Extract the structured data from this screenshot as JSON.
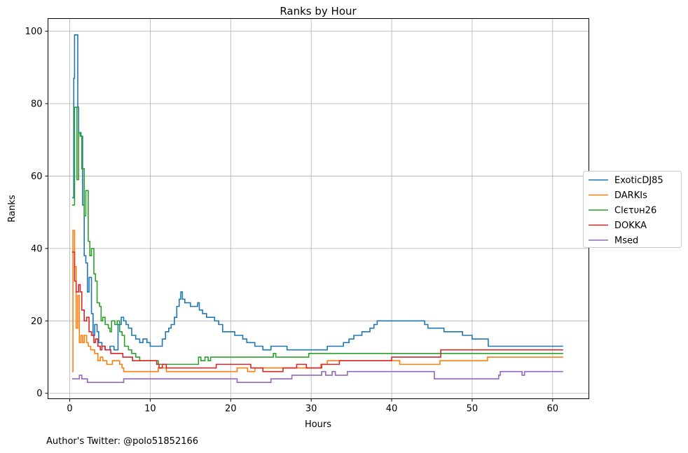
{
  "chart_data": {
    "type": "line",
    "step": true,
    "title": "Ranks by Hour",
    "xlabel": "Hours",
    "ylabel": "Ranks",
    "xlim": [
      -2.7,
      64.5
    ],
    "ylim": [
      -1.5,
      103.5
    ],
    "xticks": [
      0,
      10,
      20,
      30,
      40,
      50,
      60
    ],
    "yticks": [
      0,
      20,
      40,
      60,
      80,
      100
    ],
    "grid": true,
    "legend_position": "center-right-outside",
    "series": [
      {
        "name": "ExoticDJ85",
        "color": "#1f77b4",
        "points": [
          [
            0.3,
            54
          ],
          [
            0.5,
            87
          ],
          [
            0.6,
            99
          ],
          [
            1.0,
            79
          ],
          [
            1.1,
            72
          ],
          [
            1.4,
            71
          ],
          [
            1.6,
            52
          ],
          [
            1.8,
            38
          ],
          [
            2.0,
            36
          ],
          [
            2.2,
            28
          ],
          [
            2.4,
            32
          ],
          [
            2.7,
            22
          ],
          [
            2.9,
            16
          ],
          [
            3.1,
            19
          ],
          [
            3.4,
            17
          ],
          [
            3.6,
            14
          ],
          [
            4.0,
            13
          ],
          [
            4.4,
            12
          ],
          [
            5.0,
            13
          ],
          [
            5.5,
            12
          ],
          [
            6.0,
            19
          ],
          [
            6.4,
            21
          ],
          [
            6.7,
            20
          ],
          [
            7.0,
            19
          ],
          [
            7.3,
            18
          ],
          [
            7.7,
            16
          ],
          [
            8.2,
            15
          ],
          [
            8.7,
            14
          ],
          [
            9.1,
            15
          ],
          [
            9.6,
            14
          ],
          [
            10.0,
            13
          ],
          [
            11.0,
            13
          ],
          [
            11.5,
            15
          ],
          [
            11.9,
            17
          ],
          [
            12.3,
            18
          ],
          [
            12.6,
            19
          ],
          [
            13.0,
            21
          ],
          [
            13.3,
            24
          ],
          [
            13.6,
            26
          ],
          [
            13.8,
            28
          ],
          [
            14.0,
            26
          ],
          [
            14.3,
            25
          ],
          [
            15.0,
            24
          ],
          [
            15.9,
            25
          ],
          [
            16.1,
            23
          ],
          [
            16.5,
            22
          ],
          [
            17.0,
            21
          ],
          [
            18.0,
            20
          ],
          [
            18.5,
            19
          ],
          [
            19.0,
            17
          ],
          [
            20.5,
            16
          ],
          [
            21.5,
            15
          ],
          [
            22.0,
            14
          ],
          [
            23.0,
            13
          ],
          [
            24.0,
            12
          ],
          [
            24.5,
            12
          ],
          [
            25.0,
            13
          ],
          [
            26.5,
            13
          ],
          [
            27.0,
            12
          ],
          [
            30.0,
            12
          ],
          [
            32.0,
            13
          ],
          [
            34.0,
            14
          ],
          [
            34.7,
            15
          ],
          [
            35.3,
            16
          ],
          [
            36.3,
            17
          ],
          [
            37.3,
            18
          ],
          [
            37.8,
            19
          ],
          [
            38.2,
            20
          ],
          [
            42.0,
            20
          ],
          [
            44.1,
            19
          ],
          [
            44.5,
            18
          ],
          [
            46.5,
            17
          ],
          [
            48.8,
            16
          ],
          [
            50.0,
            15
          ],
          [
            52.0,
            13
          ],
          [
            61.3,
            13
          ]
        ]
      },
      {
        "name": "DARKIs",
        "color": "#ff7f0e",
        "points": [
          [
            0.3,
            6
          ],
          [
            0.4,
            45
          ],
          [
            0.6,
            35
          ],
          [
            0.8,
            18
          ],
          [
            1.0,
            27
          ],
          [
            1.2,
            14
          ],
          [
            1.4,
            16
          ],
          [
            1.6,
            14
          ],
          [
            1.8,
            16
          ],
          [
            2.1,
            14
          ],
          [
            2.3,
            13
          ],
          [
            2.6,
            12
          ],
          [
            3.1,
            11
          ],
          [
            3.5,
            9
          ],
          [
            3.8,
            10
          ],
          [
            4.1,
            9
          ],
          [
            4.6,
            8
          ],
          [
            5.0,
            8
          ],
          [
            5.3,
            9
          ],
          [
            6.2,
            8
          ],
          [
            6.5,
            7
          ],
          [
            6.7,
            6
          ],
          [
            10.8,
            6
          ],
          [
            11.0,
            7
          ],
          [
            12.0,
            6
          ],
          [
            20.8,
            7
          ],
          [
            22.1,
            6
          ],
          [
            23.0,
            7
          ],
          [
            29.4,
            7
          ],
          [
            31.2,
            8
          ],
          [
            32.0,
            9
          ],
          [
            40.8,
            9
          ],
          [
            41.0,
            8
          ],
          [
            46.0,
            9
          ],
          [
            51.9,
            10
          ],
          [
            61.3,
            10
          ]
        ]
      },
      {
        "name": "Clєτυн26",
        "color": "#2ca02c",
        "points": [
          [
            0.3,
            52
          ],
          [
            0.6,
            79
          ],
          [
            0.9,
            59
          ],
          [
            1.1,
            72
          ],
          [
            1.3,
            71
          ],
          [
            1.5,
            62
          ],
          [
            1.8,
            49
          ],
          [
            2.0,
            56
          ],
          [
            2.3,
            42
          ],
          [
            2.5,
            38
          ],
          [
            2.7,
            40
          ],
          [
            3.0,
            33
          ],
          [
            3.2,
            31
          ],
          [
            3.4,
            25
          ],
          [
            3.7,
            24
          ],
          [
            3.9,
            20
          ],
          [
            4.1,
            21
          ],
          [
            4.4,
            19
          ],
          [
            4.8,
            18
          ],
          [
            5.0,
            17
          ],
          [
            5.2,
            20
          ],
          [
            5.6,
            19
          ],
          [
            5.9,
            20
          ],
          [
            6.2,
            17
          ],
          [
            6.5,
            16
          ],
          [
            6.8,
            13
          ],
          [
            7.3,
            12
          ],
          [
            7.7,
            11
          ],
          [
            8.2,
            10
          ],
          [
            8.7,
            9
          ],
          [
            10.7,
            9
          ],
          [
            11.0,
            8
          ],
          [
            16.0,
            10
          ],
          [
            16.3,
            9
          ],
          [
            16.8,
            10
          ],
          [
            17.2,
            9
          ],
          [
            17.5,
            10
          ],
          [
            25.3,
            11
          ],
          [
            25.6,
            10
          ],
          [
            29.4,
            10
          ],
          [
            29.7,
            11
          ],
          [
            46.5,
            11
          ],
          [
            61.3,
            11
          ]
        ]
      },
      {
        "name": "DOKKA",
        "color": "#d62728",
        "points": [
          [
            0.3,
            39
          ],
          [
            0.6,
            31
          ],
          [
            0.8,
            28
          ],
          [
            1.1,
            30
          ],
          [
            1.3,
            28
          ],
          [
            1.5,
            23
          ],
          [
            1.8,
            20
          ],
          [
            2.1,
            21
          ],
          [
            2.4,
            17
          ],
          [
            2.7,
            16
          ],
          [
            3.0,
            14
          ],
          [
            3.2,
            15
          ],
          [
            3.5,
            13
          ],
          [
            3.8,
            12
          ],
          [
            4.0,
            13
          ],
          [
            4.4,
            12
          ],
          [
            5.1,
            11
          ],
          [
            6.0,
            11
          ],
          [
            6.6,
            10
          ],
          [
            7.2,
            10
          ],
          [
            7.8,
            9
          ],
          [
            8.5,
            9
          ],
          [
            9.8,
            9
          ],
          [
            10.8,
            8
          ],
          [
            11.1,
            7
          ],
          [
            11.5,
            8
          ],
          [
            12.0,
            7
          ],
          [
            13.4,
            7
          ],
          [
            14.0,
            7
          ],
          [
            18.2,
            8
          ],
          [
            21.0,
            8
          ],
          [
            22.5,
            7
          ],
          [
            24.0,
            6
          ],
          [
            26.5,
            7
          ],
          [
            28.2,
            8
          ],
          [
            29.4,
            7
          ],
          [
            31.3,
            8
          ],
          [
            33.5,
            9
          ],
          [
            36.0,
            9
          ],
          [
            40.0,
            10
          ],
          [
            46.1,
            12
          ],
          [
            61.3,
            12
          ]
        ]
      },
      {
        "name": "Msed",
        "color": "#9467bd",
        "points": [
          [
            0.3,
            4
          ],
          [
            1.2,
            5
          ],
          [
            1.5,
            4
          ],
          [
            2.2,
            3
          ],
          [
            6.7,
            4
          ],
          [
            11.5,
            4
          ],
          [
            20.8,
            3
          ],
          [
            25.0,
            4
          ],
          [
            27.6,
            5
          ],
          [
            29.5,
            5
          ],
          [
            30.5,
            5
          ],
          [
            31.3,
            6
          ],
          [
            31.8,
            5
          ],
          [
            32.6,
            6
          ],
          [
            33.0,
            5
          ],
          [
            34.5,
            6
          ],
          [
            45.3,
            4
          ],
          [
            53.3,
            5
          ],
          [
            53.5,
            6
          ],
          [
            56.2,
            5
          ],
          [
            56.5,
            6
          ],
          [
            61.3,
            6
          ]
        ]
      }
    ]
  },
  "footer": {
    "author": "Author's Twitter: @polo51852166"
  }
}
